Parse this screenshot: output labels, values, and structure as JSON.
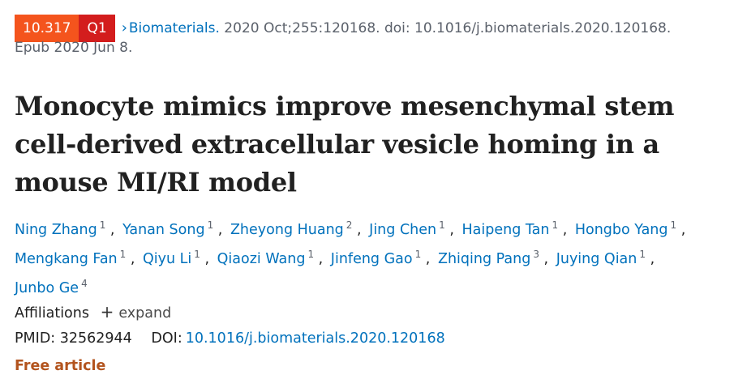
{
  "citation": {
    "impact_factor": "10.317",
    "quartile": "Q1",
    "chevron_icon": "chevron-right-icon",
    "journal": "Biomaterials.",
    "details": " 2020 Oct;255:120168. doi: 10.1016/j.biomaterials.2020.120168.",
    "epub": "Epub 2020 Jun 8."
  },
  "title": "Monocyte mimics improve mesenchymal stem cell-derived extracellular vesicle homing in a mouse MI/RI model",
  "authors": [
    {
      "name": "Ning Zhang",
      "aff": "1"
    },
    {
      "name": "Yanan Song",
      "aff": "1"
    },
    {
      "name": "Zheyong Huang",
      "aff": "2"
    },
    {
      "name": "Jing Chen",
      "aff": "1"
    },
    {
      "name": "Haipeng Tan",
      "aff": "1"
    },
    {
      "name": "Hongbo Yang",
      "aff": "1"
    },
    {
      "name": "Mengkang Fan",
      "aff": "1"
    },
    {
      "name": "Qiyu Li",
      "aff": "1"
    },
    {
      "name": "Qiaozi Wang",
      "aff": "1"
    },
    {
      "name": "Jinfeng Gao",
      "aff": "1"
    },
    {
      "name": "Zhiqing Pang",
      "aff": "3"
    },
    {
      "name": "Juying Qian",
      "aff": "1"
    },
    {
      "name": "Junbo Ge",
      "aff": "4"
    }
  ],
  "affiliations": {
    "label": "Affiliations",
    "expand_label": "expand",
    "plus_icon": "plus-icon"
  },
  "ids": {
    "pmid": "PMID: 32562944",
    "doi_label": "DOI:",
    "doi": "10.1016/j.biomaterials.2020.120168"
  },
  "free_article": "Free article"
}
